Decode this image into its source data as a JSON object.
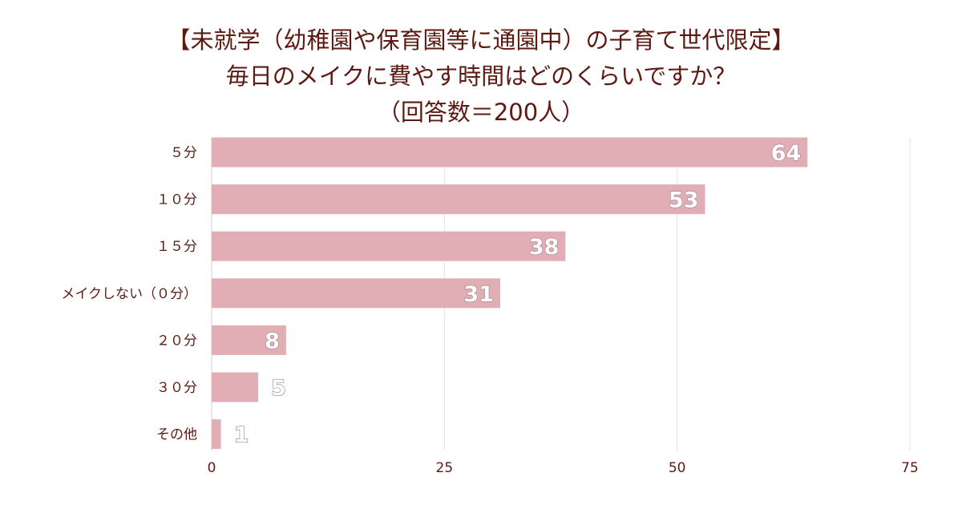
{
  "chart_data": {
    "type": "bar",
    "orientation": "horizontal",
    "title_lines": [
      "【未就学（幼稚園や保育園等に通園中）の子育て世代限定】",
      "毎日のメイクに費やす時間はどのくらいですか？",
      "（回答数＝200人）"
    ],
    "categories": [
      "５分",
      "１０分",
      "１５分",
      "メイクしない（０分）",
      "２０分",
      "３０分",
      "その他"
    ],
    "values": [
      64,
      53,
      38,
      31,
      8,
      5,
      1
    ],
    "xlim": [
      0,
      75
    ],
    "xticks": [
      0,
      25,
      50,
      75
    ],
    "xlabel": "",
    "ylabel": "",
    "grid": true,
    "bar_color": "#e2aeb5",
    "text_color": "#5c1a12",
    "grid_color": "#e3e3e3"
  }
}
